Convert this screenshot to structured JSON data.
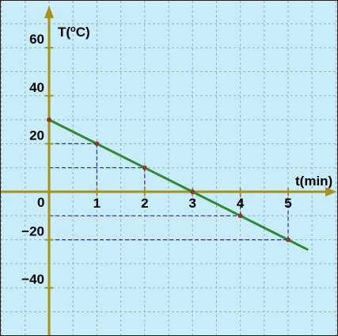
{
  "chart_data": {
    "type": "line",
    "title": "",
    "xlabel": "t(min)",
    "ylabel_parts": [
      "T(",
      "o",
      "C)"
    ],
    "xlim": [
      0,
      5.4
    ],
    "ylim": [
      -60,
      70
    ],
    "x_ticks": [
      1,
      2,
      3,
      4,
      5
    ],
    "x_tick_labels": [
      "1",
      "2",
      "3",
      "4",
      "5"
    ],
    "y_ticks": [
      60,
      40,
      20,
      -20,
      -40
    ],
    "y_tick_labels": [
      "60",
      "40",
      "20",
      "−20",
      "−40"
    ],
    "origin_label": "0",
    "grid": true,
    "series": [
      {
        "color": "#2e8b35",
        "x": [
          0,
          1,
          2,
          3,
          4,
          5,
          5.4
        ],
        "y": [
          30,
          20,
          10,
          0,
          -10,
          -20,
          -24
        ]
      }
    ],
    "marked_points": [
      {
        "x": 0,
        "y": 30
      },
      {
        "x": 1,
        "y": 20
      },
      {
        "x": 2,
        "y": 10
      },
      {
        "x": 3,
        "y": 0
      },
      {
        "x": 4,
        "y": -10
      },
      {
        "x": 5,
        "y": -20
      }
    ],
    "colors": {
      "background": "#c9ecf9",
      "grid": "#8fb3c4",
      "axis": "#a8901b",
      "line": "#2e8b35",
      "guides": "#2b2f9a",
      "points": "#8a3a2a"
    }
  }
}
